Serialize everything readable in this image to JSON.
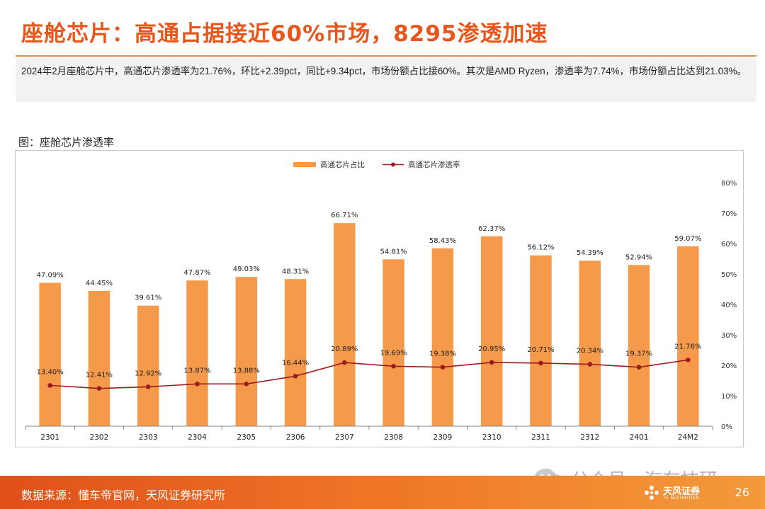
{
  "title": "座舱芯片：高通占据接近60%市场，8295渗透加速",
  "summary": "2024年2月座舱芯片中，高通芯片渗透率为21.76%，环比+2.39pct，同比+9.34pct，市场份额占比接60%。其次是AMD Ryzen，渗透率为7.74%，市场份额占比达到21.03%。",
  "figure_label": "图：座舱芯片渗透率",
  "footer": {
    "source": "数据来源：懂车帝官网，天风证券研究所",
    "page": "26",
    "logo_cn": "天风证券",
    "logo_en": "TF SECURITIES",
    "watermark": "公众号 · 汽车技研"
  },
  "colors": {
    "accent": "#e8561c",
    "bar": "#f59a4a",
    "line": "#9e1b1e"
  },
  "chart_data": {
    "type": "bar",
    "categories": [
      "2301",
      "2302",
      "2303",
      "2304",
      "2305",
      "2306",
      "2307",
      "2308",
      "2309",
      "2310",
      "2311",
      "2312",
      "2401",
      "24M2"
    ],
    "series": [
      {
        "name": "高通芯片占比",
        "type": "bar",
        "values": [
          47.09,
          44.45,
          39.61,
          47.87,
          49.03,
          48.31,
          66.71,
          54.81,
          58.43,
          62.37,
          56.12,
          54.39,
          52.94,
          59.07
        ],
        "labels": [
          "47.09%",
          "44.45%",
          "39.61%",
          "47.87%",
          "49.03%",
          "48.31%",
          "66.71%",
          "54.81%",
          "58.43%",
          "62.37%",
          "56.12%",
          "54.39%",
          "52.94%",
          "59.07%"
        ]
      },
      {
        "name": "高通芯片渗透率",
        "type": "line",
        "values": [
          13.4,
          12.41,
          12.92,
          13.87,
          13.88,
          16.44,
          20.89,
          19.69,
          19.38,
          20.95,
          20.71,
          20.34,
          19.37,
          21.76
        ],
        "labels": [
          "13.40%",
          "12.41%",
          "12.92%",
          "13.87%",
          "13.88%",
          "16.44%",
          "20.89%",
          "19.69%",
          "19.38%",
          "20.95%",
          "20.71%",
          "20.34%",
          "19.37%",
          "21.76%"
        ]
      }
    ],
    "ylim": [
      0,
      80
    ],
    "yticks": [
      "0%",
      "10%",
      "20%",
      "30%",
      "40%",
      "50%",
      "60%",
      "70%",
      "80%"
    ],
    "ytick_values": [
      0,
      10,
      20,
      30,
      40,
      50,
      60,
      70,
      80
    ],
    "legend_position": "top-center",
    "grid": false
  }
}
